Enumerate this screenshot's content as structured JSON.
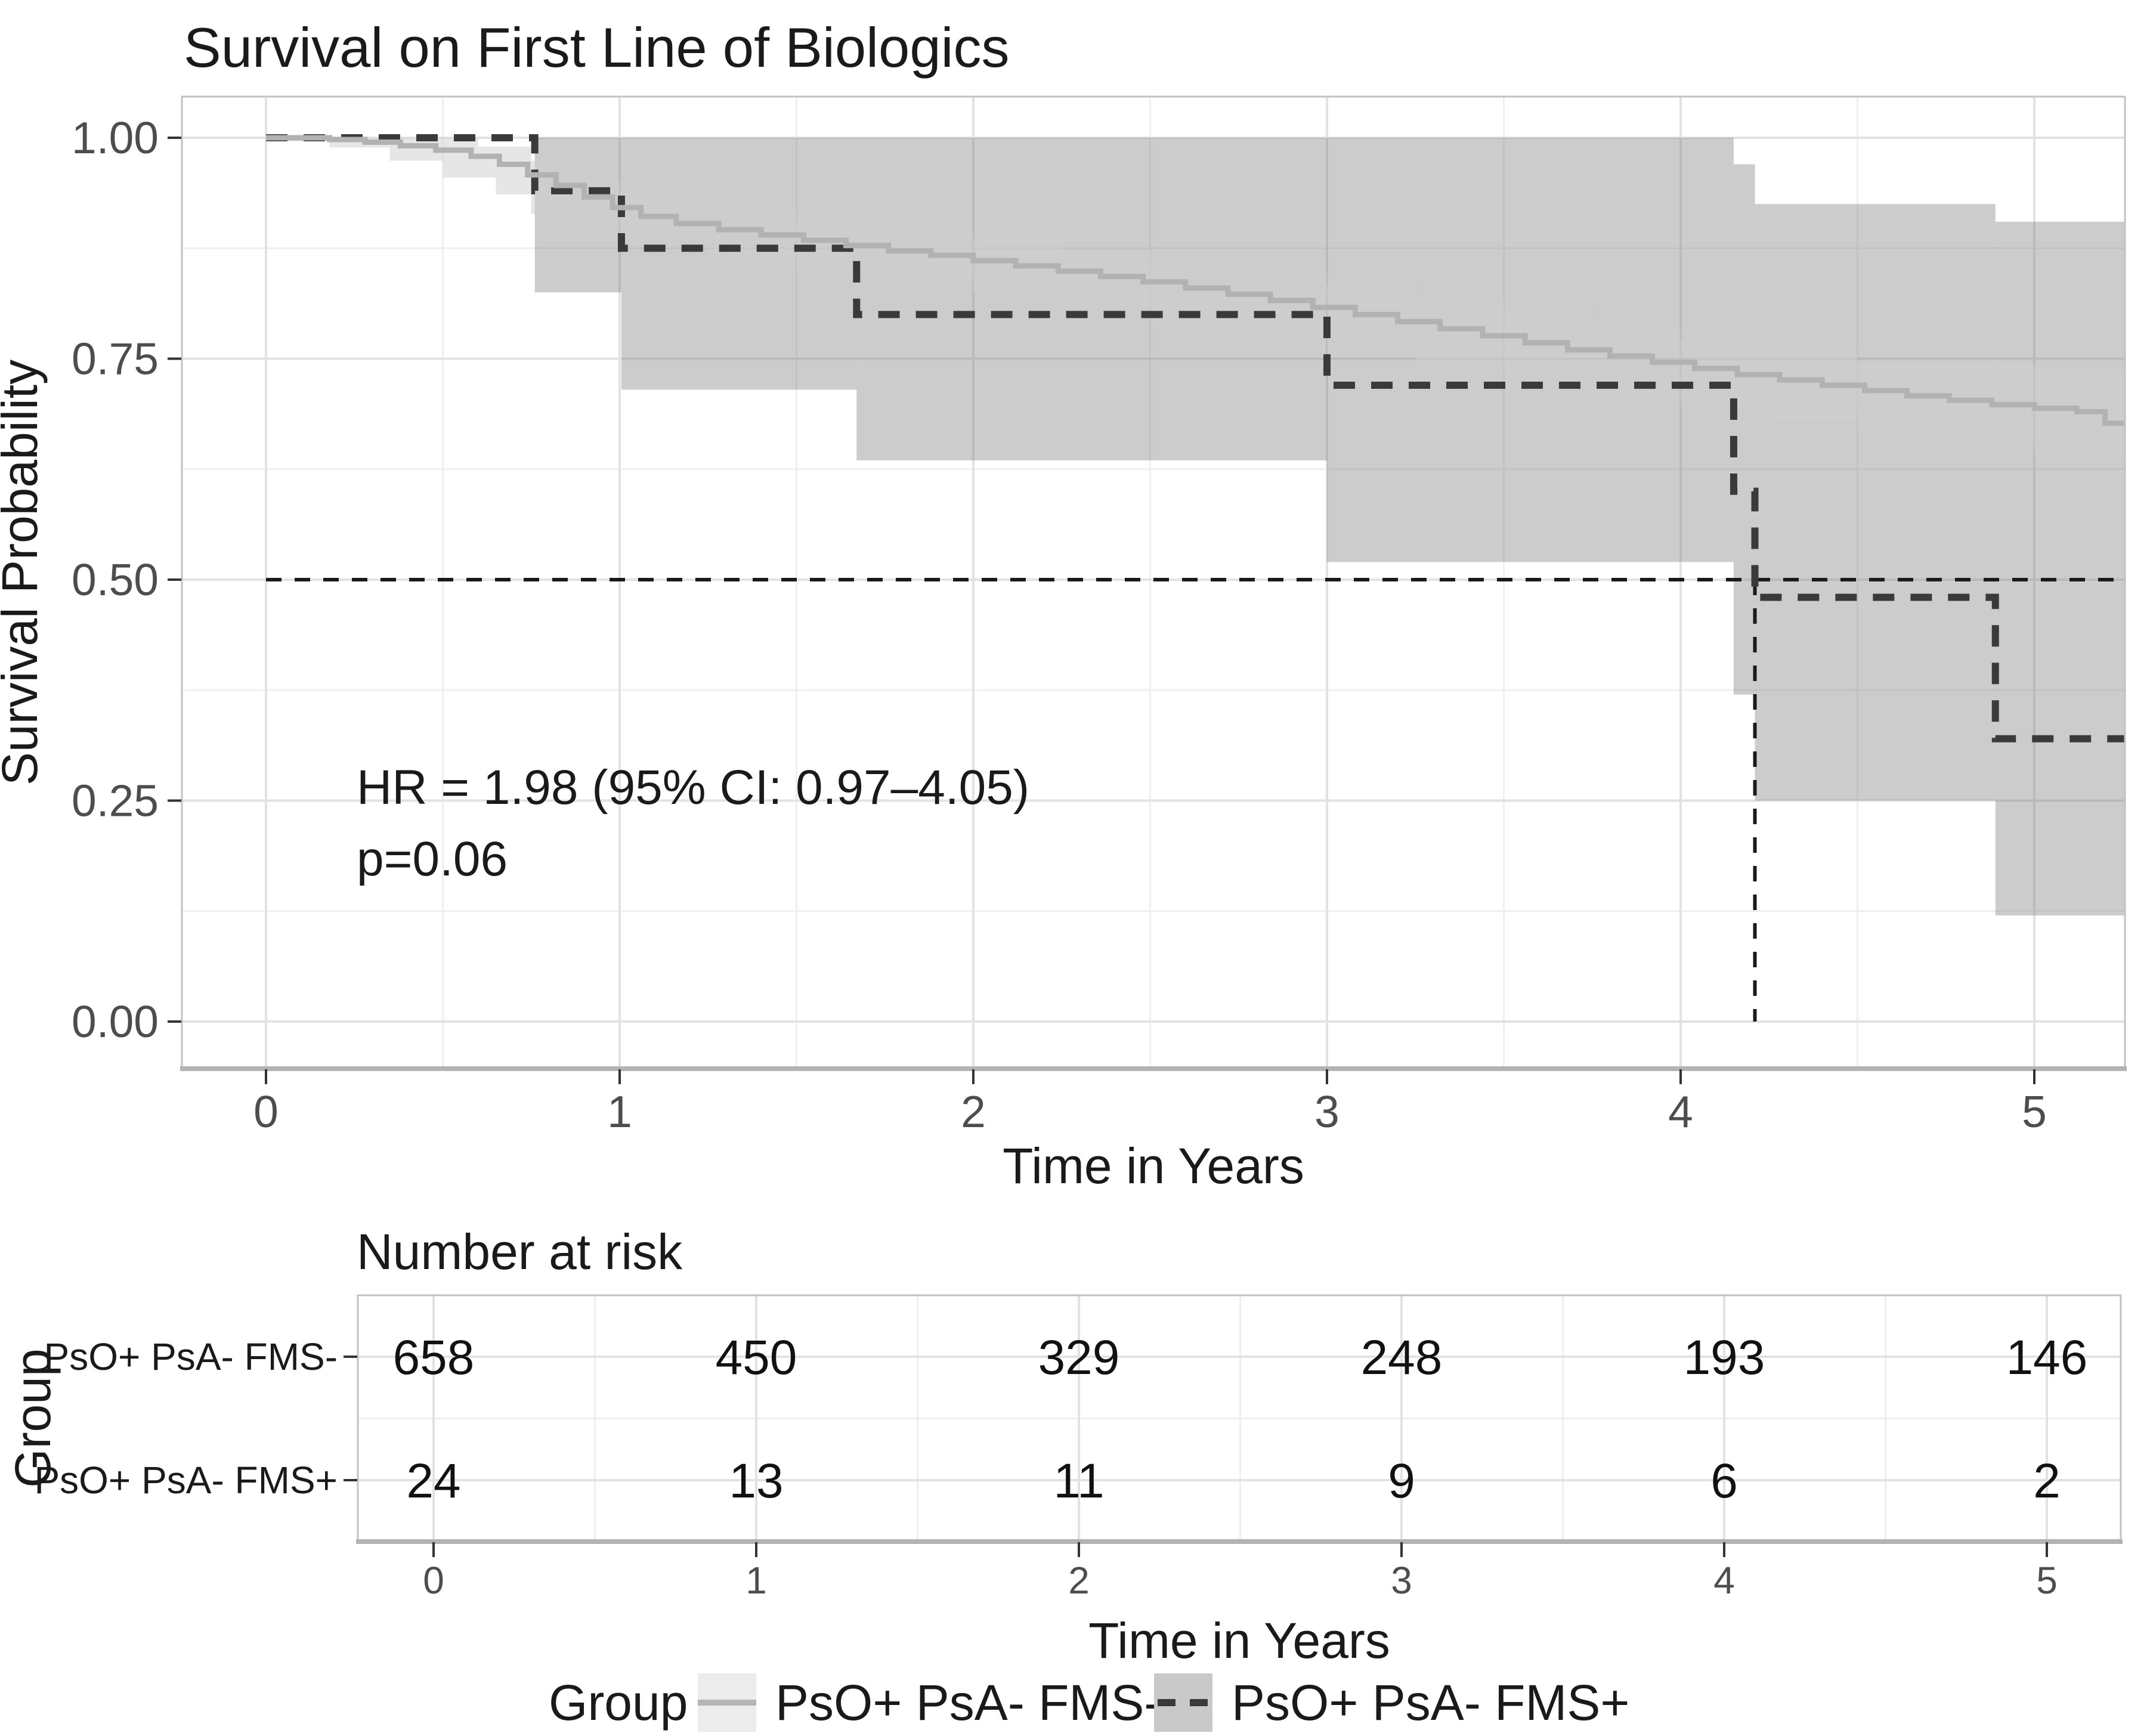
{
  "page": {
    "background": "#ffffff"
  },
  "chart_data": {
    "type": "line",
    "subtype": "kaplan-meier-survival",
    "title": "Survival on First Line of Biologics",
    "xlabel": "Time in Years",
    "ylabel": "Survival Probability",
    "xlim": [
      -0.238,
      5.256
    ],
    "ylim": [
      -0.053,
      1.047
    ],
    "x_ticks": [
      0,
      1,
      2,
      3,
      4,
      5
    ],
    "y_ticks": [
      {
        "value": 1.0,
        "label": "1.00"
      },
      {
        "value": 0.75,
        "label": "0.75"
      },
      {
        "value": 0.5,
        "label": "0.50"
      },
      {
        "value": 0.25,
        "label": "0.25"
      },
      {
        "value": 0.0,
        "label": "0.00"
      }
    ],
    "grid": "major and minor, light gray, on",
    "legend_position": "bottom",
    "annotation": {
      "line1": "HR = 1.98 (95% CI: 0.97–4.05)",
      "line2": "p=0.06"
    },
    "median_reference": {
      "survival_level": 0.5,
      "median_time_dashed_group": 4.21
    },
    "series": [
      {
        "name": "PsO+ PsA- FMS-",
        "line_style": "solid",
        "color": "#b2b2b2",
        "ci_color": "rgba(205,205,205,0.50)",
        "points": [
          [
            0,
            1.0
          ],
          [
            0.18,
            0.998
          ],
          [
            0.28,
            0.995
          ],
          [
            0.38,
            0.991
          ],
          [
            0.48,
            0.986
          ],
          [
            0.58,
            0.979
          ],
          [
            0.66,
            0.97
          ],
          [
            0.74,
            0.958
          ],
          [
            0.82,
            0.946
          ],
          [
            0.9,
            0.933
          ],
          [
            0.98,
            0.921
          ],
          [
            1.06,
            0.911
          ],
          [
            1.16,
            0.903
          ],
          [
            1.28,
            0.896
          ],
          [
            1.4,
            0.89
          ],
          [
            1.52,
            0.884
          ],
          [
            1.64,
            0.878
          ],
          [
            1.76,
            0.872
          ],
          [
            1.88,
            0.867
          ],
          [
            2.0,
            0.861
          ],
          [
            2.12,
            0.855
          ],
          [
            2.24,
            0.849
          ],
          [
            2.36,
            0.843
          ],
          [
            2.48,
            0.837
          ],
          [
            2.6,
            0.83
          ],
          [
            2.72,
            0.823
          ],
          [
            2.84,
            0.816
          ],
          [
            2.96,
            0.808
          ],
          [
            3.08,
            0.8
          ],
          [
            3.2,
            0.792
          ],
          [
            3.32,
            0.784
          ],
          [
            3.44,
            0.776
          ],
          [
            3.56,
            0.768
          ],
          [
            3.68,
            0.76
          ],
          [
            3.8,
            0.753
          ],
          [
            3.92,
            0.746
          ],
          [
            4.04,
            0.739
          ],
          [
            4.16,
            0.732
          ],
          [
            4.28,
            0.726
          ],
          [
            4.4,
            0.72
          ],
          [
            4.52,
            0.714
          ],
          [
            4.64,
            0.708
          ],
          [
            4.76,
            0.703
          ],
          [
            4.88,
            0.698
          ],
          [
            5.0,
            0.694
          ],
          [
            5.12,
            0.69
          ],
          [
            5.2,
            0.677
          ],
          [
            5.256,
            0.677
          ]
        ],
        "ci_upper": [
          [
            0,
            1.0
          ],
          [
            0.45,
            1.0
          ],
          [
            0.6,
            0.99
          ],
          [
            0.75,
            0.974
          ],
          [
            0.9,
            0.953
          ],
          [
            1.0,
            0.94
          ],
          [
            1.25,
            0.922
          ],
          [
            1.5,
            0.906
          ],
          [
            1.75,
            0.896
          ],
          [
            2.0,
            0.885
          ],
          [
            2.25,
            0.873
          ],
          [
            2.5,
            0.859
          ],
          [
            2.75,
            0.847
          ],
          [
            3.0,
            0.834
          ],
          [
            3.25,
            0.818
          ],
          [
            3.5,
            0.802
          ],
          [
            3.75,
            0.786
          ],
          [
            4.0,
            0.771
          ],
          [
            4.25,
            0.758
          ],
          [
            4.5,
            0.746
          ],
          [
            4.75,
            0.743
          ],
          [
            5.0,
            0.741
          ],
          [
            5.2,
            0.729
          ],
          [
            5.256,
            0.729
          ]
        ],
        "ci_lower": [
          [
            0,
            1.0
          ],
          [
            0.18,
            0.996
          ],
          [
            0.35,
            0.989
          ],
          [
            0.5,
            0.974
          ],
          [
            0.65,
            0.955
          ],
          [
            0.75,
            0.936
          ],
          [
            0.9,
            0.914
          ],
          [
            1.0,
            0.896
          ],
          [
            1.25,
            0.879
          ],
          [
            1.5,
            0.863
          ],
          [
            1.75,
            0.849
          ],
          [
            2.0,
            0.837
          ],
          [
            2.25,
            0.824
          ],
          [
            2.5,
            0.807
          ],
          [
            2.75,
            0.792
          ],
          [
            3.0,
            0.773
          ],
          [
            3.25,
            0.756
          ],
          [
            3.5,
            0.739
          ],
          [
            3.75,
            0.722
          ],
          [
            4.0,
            0.706
          ],
          [
            4.25,
            0.695
          ],
          [
            4.5,
            0.682
          ],
          [
            4.75,
            0.668
          ],
          [
            5.0,
            0.651
          ],
          [
            5.2,
            0.638
          ],
          [
            5.256,
            0.638
          ]
        ]
      },
      {
        "name": "PsO+ PsA- FMS+",
        "line_style": "dashed",
        "color": "#3a3a3a",
        "ci_color": "rgba(128,128,128,0.40)",
        "points": [
          [
            0,
            1.0
          ],
          [
            0.76,
            0.94
          ],
          [
            1.005,
            0.875
          ],
          [
            1.67,
            0.8
          ],
          [
            3.0,
            0.72
          ],
          [
            4.15,
            0.6
          ],
          [
            4.21,
            0.48
          ],
          [
            4.89,
            0.32
          ],
          [
            5.256,
            0.32
          ]
        ],
        "ci_rects": [
          {
            "t0": 0.76,
            "t1": 1.005,
            "lo": 0.825,
            "hi": 1.0
          },
          {
            "t0": 1.005,
            "t1": 1.67,
            "lo": 0.715,
            "hi": 1.0
          },
          {
            "t0": 1.67,
            "t1": 3.0,
            "lo": 0.635,
            "hi": 1.0
          },
          {
            "t0": 3.0,
            "t1": 4.15,
            "lo": 0.52,
            "hi": 1.0
          },
          {
            "t0": 4.15,
            "t1": 4.21,
            "lo": 0.37,
            "hi": 0.97
          },
          {
            "t0": 4.21,
            "t1": 4.89,
            "lo": 0.25,
            "hi": 0.925
          },
          {
            "t0": 4.89,
            "t1": 5.256,
            "lo": 0.12,
            "hi": 0.905
          }
        ]
      }
    ],
    "risk_table": {
      "title": "Number at risk",
      "group_axis_label": "Group",
      "xlabel": "Time in Years",
      "x_ticks": [
        0,
        1,
        2,
        3,
        4,
        5
      ],
      "rows": [
        {
          "label": "PsO+ PsA- FMS-",
          "label_color": "#c3c3c3",
          "values": [
            658,
            450,
            329,
            248,
            193,
            146
          ]
        },
        {
          "label": "PsO+ PsA- FMS+",
          "label_color": "#474747",
          "values": [
            24,
            13,
            11,
            9,
            6,
            2
          ]
        }
      ]
    },
    "legend": {
      "title": "Group",
      "entries": [
        {
          "label": "PsO+ PsA- FMS-",
          "style": "solid",
          "key_bg": "#ececec",
          "line_color": "#b5b5b5"
        },
        {
          "label": "PsO+ PsA- FMS+",
          "style": "dashed",
          "key_bg": "#c9c9c9",
          "line_color": "#3a3a3a"
        }
      ]
    }
  }
}
